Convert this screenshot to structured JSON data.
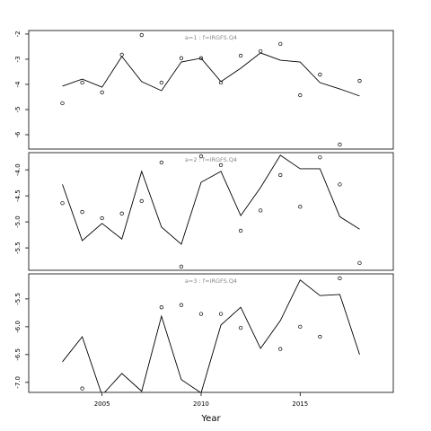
{
  "chart_data": [
    {
      "type": "line",
      "title": "a=1  :  f=IRGFS.Q4",
      "x": [
        2003,
        2004,
        2005,
        2006,
        2007,
        2008,
        2009,
        2010,
        2011,
        2012,
        2013,
        2014,
        2015,
        2016,
        2017,
        2018
      ],
      "xlim": [
        2001.3,
        2019.7
      ],
      "ylim": [
        -6.57,
        -1.86
      ],
      "yticks": [
        -2,
        -3,
        -4,
        -5,
        -6
      ],
      "series": [
        {
          "style": "line",
          "color": "#000000",
          "values": [
            -4.07,
            -3.79,
            -4.11,
            -2.89,
            -3.89,
            -4.25,
            -3.11,
            -2.96,
            -3.89,
            -3.36,
            -2.75,
            -3.04,
            -3.11,
            -3.93,
            -4.18,
            -4.46
          ]
        },
        {
          "style": "points",
          "color": "#000000",
          "values": [
            -4.75,
            -3.93,
            -4.32,
            -2.82,
            -2.04,
            -3.93,
            -2.96,
            -2.96,
            -3.93,
            -2.86,
            -2.68,
            -2.39,
            -4.43,
            -3.61,
            -6.39,
            -3.86
          ]
        }
      ]
    },
    {
      "type": "line",
      "title": "a=2  :  f=IRGFS.Q4",
      "x": [
        2003,
        2004,
        2005,
        2006,
        2007,
        2008,
        2009,
        2010,
        2011,
        2012,
        2013,
        2014,
        2015,
        2016,
        2017,
        2018
      ],
      "xlim": [
        2001.3,
        2019.7
      ],
      "ylim": [
        -5.93,
        -3.67
      ],
      "yticks": [
        {
          "value": -4,
          "label": "-4.0"
        },
        -4.5,
        {
          "value": -5,
          "label": "-5.0"
        },
        -5.5
      ],
      "series": [
        {
          "style": "line",
          "color": "#000000",
          "values": [
            -4.28,
            -5.36,
            -5.03,
            -5.33,
            -4.03,
            -5.1,
            -5.43,
            -4.24,
            -4.03,
            -4.88,
            -4.34,
            -3.72,
            -3.98,
            -3.98,
            -4.9,
            -5.14
          ]
        },
        {
          "style": "points",
          "color": "#000000",
          "values": [
            -4.64,
            -4.81,
            -4.93,
            -4.84,
            -4.6,
            -3.86,
            -5.86,
            -3.74,
            -3.91,
            -5.17,
            -4.78,
            -4.1,
            -4.71,
            -3.76,
            -4.28,
            -5.79
          ]
        }
      ]
    },
    {
      "type": "line",
      "title": "a=3  :  f=IRGFS.Q4",
      "x": [
        2003,
        2004,
        2005,
        2006,
        2007,
        2008,
        2009,
        2010,
        2011,
        2012,
        2013,
        2014,
        2015,
        2016,
        2017,
        2018
      ],
      "xlim": [
        2001.3,
        2019.7
      ],
      "xticks": [
        2005,
        2010,
        2015
      ],
      "xlabel": "Year",
      "ylim": [
        -7.18,
        -5.05
      ],
      "yticks": [
        -5.5,
        {
          "value": -6,
          "label": "-6.0"
        },
        -6.5,
        {
          "value": -7,
          "label": "-7.0"
        }
      ],
      "series": [
        {
          "style": "line",
          "color": "#000000",
          "values": [
            -6.63,
            -6.18,
            -7.23,
            -6.84,
            -7.16,
            -5.81,
            -6.95,
            -7.19,
            -5.97,
            -5.65,
            -6.39,
            -5.89,
            -5.16,
            -5.44,
            -5.42,
            -6.5
          ]
        },
        {
          "style": "points",
          "color": "#000000",
          "values": [
            null,
            -7.11,
            null,
            null,
            null,
            -5.65,
            -5.61,
            -5.77,
            -5.77,
            -6.02,
            null,
            -6.4,
            -6.0,
            -6.18,
            -5.13,
            null
          ]
        }
      ]
    }
  ]
}
